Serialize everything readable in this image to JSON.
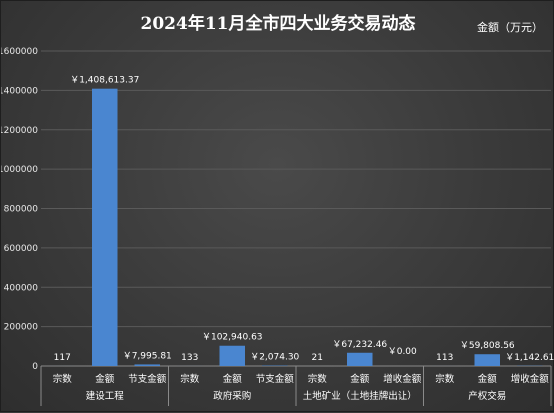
{
  "chart_data": {
    "type": "bar",
    "title": "2024年11月全市四大业务交易动态",
    "unit_label": "金额（万元）",
    "ylim": [
      0,
      1600000
    ],
    "yticks": [
      "0",
      "200000",
      "400000",
      "600000",
      "800000",
      "1000000",
      "1200000",
      "1400000",
      "1600000"
    ],
    "grid": true,
    "bar_color": "#4a86d0",
    "groups": [
      {
        "name": "建设工程",
        "categories": [
          "宗数",
          "金额",
          "节支金额"
        ],
        "values": [
          117,
          1408613.37,
          7995.81
        ],
        "labels": [
          "117",
          "￥1,408,613.37",
          "￥7,995.81"
        ]
      },
      {
        "name": "政府采购",
        "categories": [
          "宗数",
          "金额",
          "节支金额"
        ],
        "values": [
          133,
          102940.63,
          2074.3
        ],
        "labels": [
          "133",
          "￥102,940.63",
          "￥2,074.30"
        ]
      },
      {
        "name": "土地矿业（土地挂牌出让）",
        "categories": [
          "宗数",
          "金额",
          "增收金额"
        ],
        "values": [
          21,
          67232.46,
          0.0
        ],
        "labels": [
          "21",
          "￥67,232.46",
          "￥0.00"
        ]
      },
      {
        "name": "产权交易",
        "categories": [
          "宗数",
          "金额",
          "增收金额"
        ],
        "values": [
          113,
          59808.56,
          1142.61
        ],
        "labels": [
          "113",
          "￥59,808.56",
          "￥1,142.61"
        ]
      }
    ]
  }
}
